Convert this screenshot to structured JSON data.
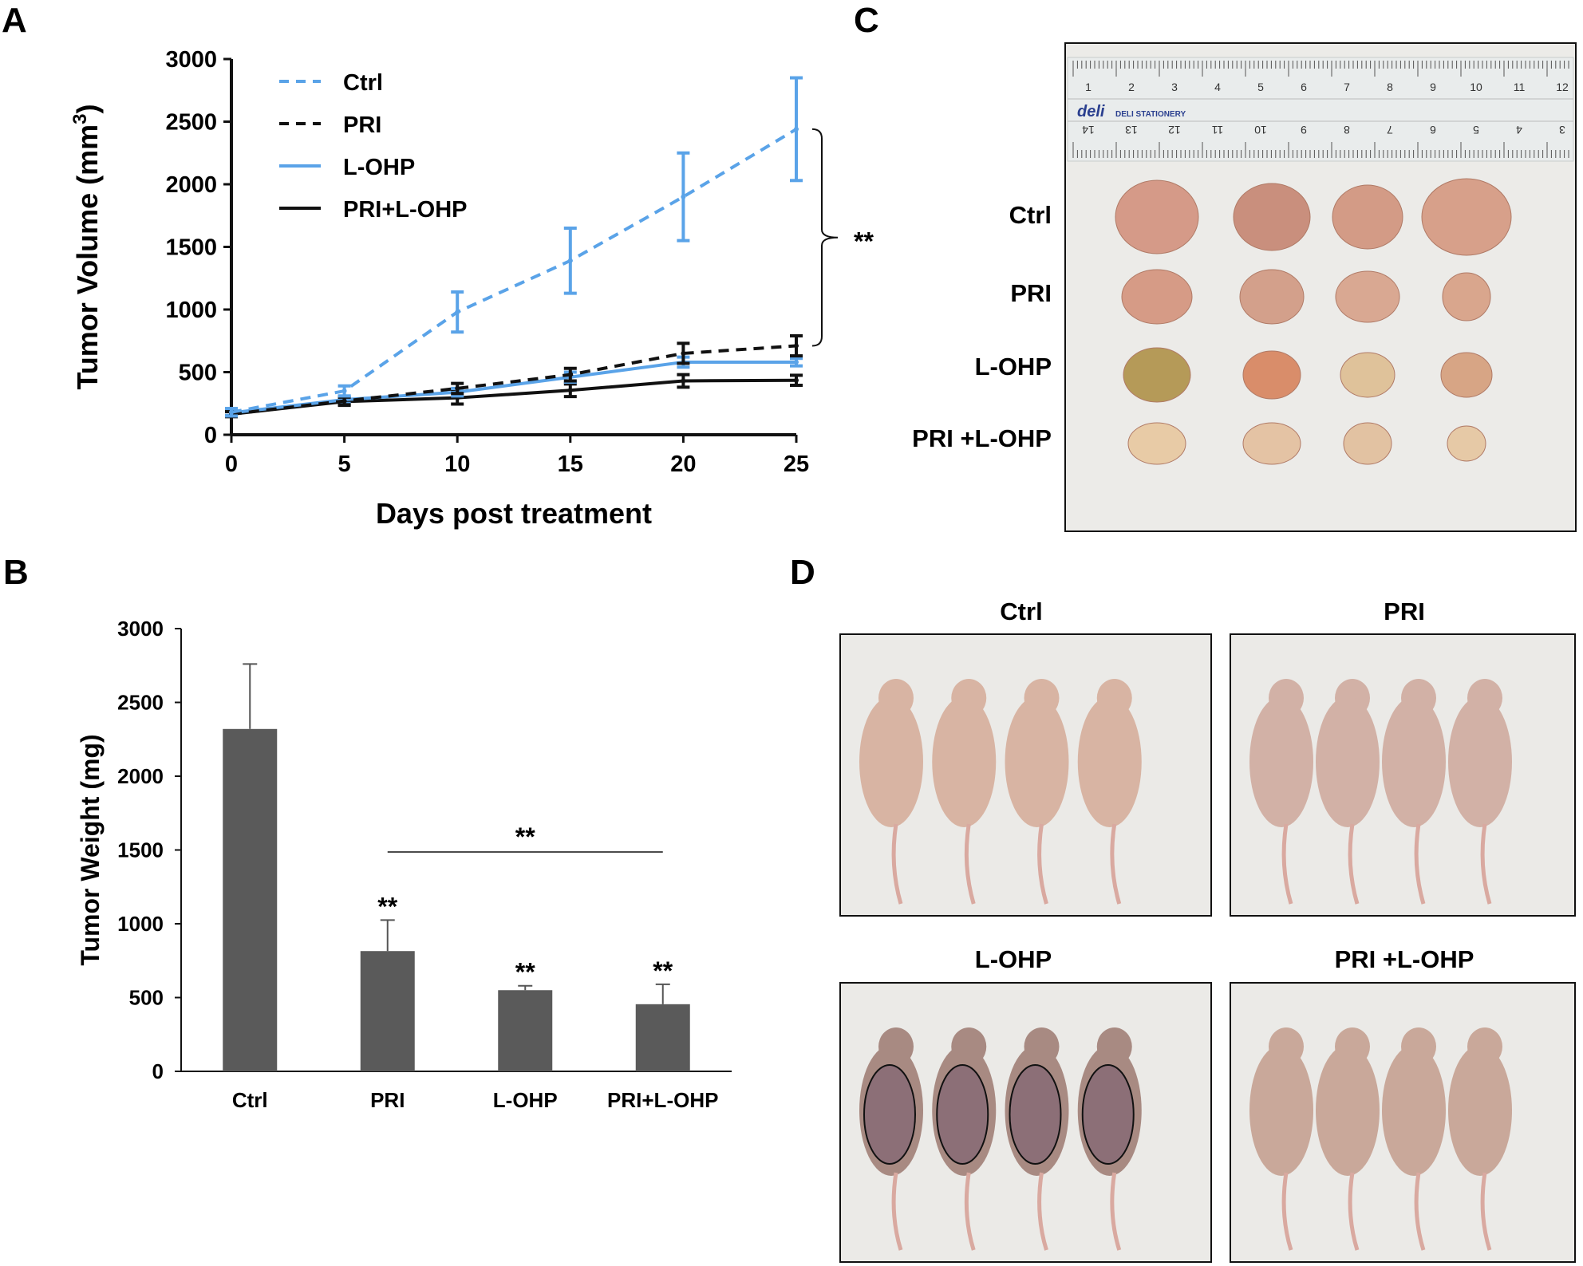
{
  "colors": {
    "blue": "#5aa3e8",
    "black": "#111111",
    "bar": "#5a5a5a"
  },
  "panels": {
    "a": "A",
    "b": "B",
    "c": "C",
    "d": "D"
  },
  "chart_data": [
    {
      "type": "line",
      "panel": "A",
      "title": "",
      "xlabel": "Days post treatment",
      "ylabel": "Tumor Volume (mm",
      "ylabel_sup": "3",
      "ylabel_close": ")",
      "xlim": [
        0,
        25
      ],
      "ylim": [
        0,
        3000
      ],
      "x_ticks": [
        0,
        5,
        10,
        15,
        20,
        25
      ],
      "y_ticks": [
        0,
        500,
        1000,
        1500,
        2000,
        2500,
        3000
      ],
      "x": [
        0,
        5,
        10,
        15,
        20,
        25
      ],
      "legend_position": "top-left",
      "series": [
        {
          "name": "Ctrl",
          "style": "dashed",
          "color": "#5aa3e8",
          "values": [
            180,
            350,
            980,
            1390,
            1900,
            2440
          ],
          "errors": [
            30,
            40,
            160,
            260,
            350,
            410
          ]
        },
        {
          "name": "PRI",
          "style": "dashed",
          "color": "#111111",
          "values": [
            165,
            270,
            370,
            480,
            650,
            710
          ],
          "errors": [
            20,
            30,
            40,
            50,
            80,
            80
          ]
        },
        {
          "name": "L-OHP",
          "style": "solid",
          "color": "#5aa3e8",
          "values": [
            175,
            280,
            340,
            460,
            580,
            580
          ],
          "errors": [
            20,
            30,
            30,
            40,
            40,
            30
          ]
        },
        {
          "name": "PRI+L-OHP",
          "style": "solid",
          "color": "#111111",
          "values": [
            165,
            265,
            295,
            355,
            430,
            435
          ],
          "errors": [
            20,
            30,
            50,
            50,
            50,
            40
          ]
        }
      ],
      "annotation": "**"
    },
    {
      "type": "bar",
      "panel": "B",
      "title": "",
      "xlabel": "",
      "ylabel": "Tumor Weight (mg)",
      "ylim": [
        0,
        3000
      ],
      "y_ticks": [
        0,
        500,
        1000,
        1500,
        2000,
        2500,
        3000
      ],
      "categories": [
        "Ctrl",
        "PRI",
        "L-OHP",
        "PRI+L-OHP"
      ],
      "values": [
        2320,
        815,
        550,
        455
      ],
      "errors": [
        440,
        210,
        30,
        135
      ],
      "bar_stars": [
        "",
        "**",
        "**",
        "**"
      ],
      "bracket_label": "**"
    }
  ],
  "panel_c": {
    "row_labels": [
      "Ctrl",
      "PRI",
      "L-OHP",
      "PRI +L-OHP"
    ],
    "ruler_top_numbers": [
      "1",
      "2",
      "3",
      "4",
      "5",
      "6",
      "7",
      "8",
      "9",
      "10",
      "11",
      "12"
    ],
    "ruler_bottom_numbers": [
      "14",
      "13",
      "12",
      "11",
      "10",
      "9",
      "8",
      "7",
      "6",
      "5",
      "4",
      "3"
    ],
    "ruler_brand": "deli",
    "ruler_brand_sub": "DELI STATIONERY"
  },
  "panel_d": {
    "labels": [
      "Ctrl",
      "PRI",
      "L-OHP",
      "PRI +L-OHP"
    ]
  }
}
